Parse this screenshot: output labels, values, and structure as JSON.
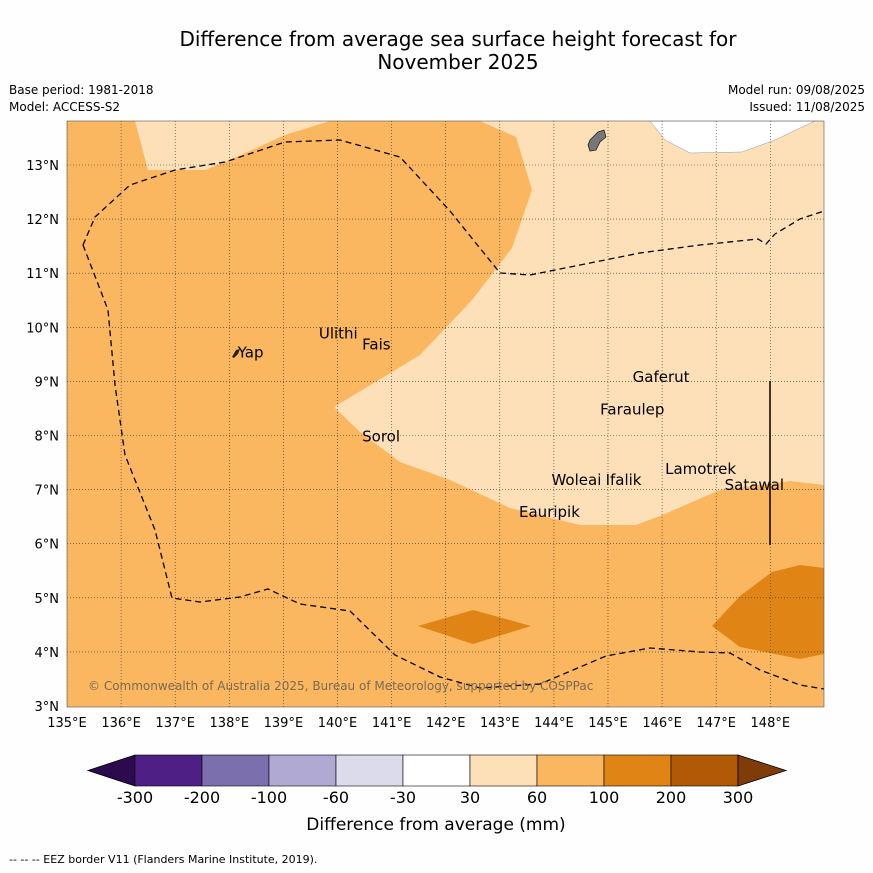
{
  "title_line1": "Difference from average sea surface height forecast for",
  "title_line2": "November 2025",
  "base_period": "Base period: 1981-2018",
  "model": "Model: ACCESS-S2",
  "model_run": "Model run: 09/08/2025",
  "issued": "Issued: 11/08/2025",
  "copyright": "© Commonwealth of Australia 2025, Bureau of Meteorology, supported by COSPPac",
  "footnote": "-- -- -- EEZ border V11 (Flanders Marine Institute, 2019).",
  "axes": {
    "lon_labels": [
      "135°E",
      "136°E",
      "137°E",
      "138°E",
      "139°E",
      "140°E",
      "141°E",
      "142°E",
      "143°E",
      "144°E",
      "145°E",
      "146°E",
      "147°E",
      "148°E"
    ],
    "lat_labels": [
      "13°N",
      "12°N",
      "11°N",
      "10°N",
      "9°N",
      "8°N",
      "7°N",
      "6°N",
      "5°N",
      "4°N",
      "3°N"
    ],
    "lon_range": [
      135,
      149
    ],
    "lat_range": [
      3,
      13.8
    ]
  },
  "places": [
    {
      "name": "Yap",
      "lon": 138.1,
      "lat": 9.55
    },
    {
      "name": "Ulithi",
      "lon": 139.6,
      "lat": 9.9
    },
    {
      "name": "Fais",
      "lon": 140.4,
      "lat": 9.7
    },
    {
      "name": "Gaferut",
      "lon": 145.4,
      "lat": 9.1
    },
    {
      "name": "Faraulep",
      "lon": 144.8,
      "lat": 8.5
    },
    {
      "name": "Sorol",
      "lon": 140.4,
      "lat": 8.0
    },
    {
      "name": "Lamotrek",
      "lon": 146.0,
      "lat": 7.4
    },
    {
      "name": "Woleai",
      "lon": 143.9,
      "lat": 7.2
    },
    {
      "name": "Ifalik",
      "lon": 144.9,
      "lat": 7.2
    },
    {
      "name": "Satawal",
      "lon": 147.1,
      "lat": 7.1
    },
    {
      "name": "Eauripik",
      "lon": 143.3,
      "lat": 6.6
    }
  ],
  "colorbar": {
    "title": "Difference from average (mm)",
    "labels": [
      "-300",
      "-200",
      "-100",
      "-60",
      "-30",
      "30",
      "60",
      "100",
      "200",
      "300"
    ],
    "colors": [
      "#4e1f84",
      "#7b70ad",
      "#b0a9d3",
      "#dbdbec",
      "#ffffff",
      "#fde0b7",
      "#fab75f",
      "#e08416",
      "#b25906"
    ],
    "under_color": "#2d0a4e",
    "over_color": "#7f3b08"
  },
  "map_colors": {
    "band_30_60": "#fde0b7",
    "band_60_100": "#fab75f",
    "band_100_200": "#e08416",
    "land": "#777777"
  }
}
